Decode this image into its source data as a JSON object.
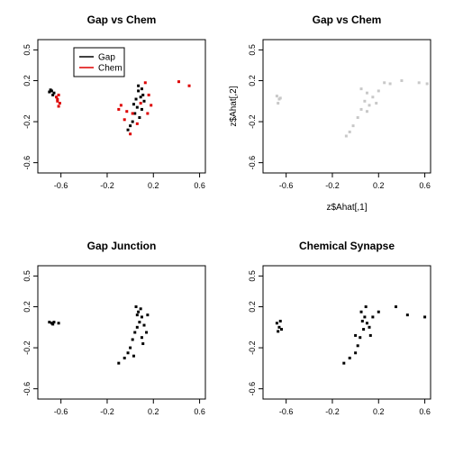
{
  "chart_data": [
    {
      "type": "scatter",
      "title": "Gap vs Chem",
      "xlabel": "",
      "ylabel": "",
      "xlim": [
        -0.8,
        0.65
      ],
      "ylim": [
        -0.7,
        0.6
      ],
      "xticks": [
        -0.6,
        -0.2,
        0.2,
        0.6
      ],
      "xtick_labels": [
        "-0.6",
        "-0.2",
        "0.2",
        "0.6"
      ],
      "yticks": [
        -0.6,
        -0.2,
        0.2,
        0.5
      ],
      "ytick_labels": [
        "-0.6",
        "-0.2",
        "0.2",
        "0.5"
      ],
      "legend": {
        "placement": "top-left",
        "entries": [
          {
            "name": "Gap",
            "color": "#000000"
          },
          {
            "name": "Chem",
            "color": "#dd0000"
          }
        ]
      },
      "series": [
        {
          "name": "Gap",
          "color": "#000000",
          "points": [
            [
              -0.69,
              0.11
            ],
            [
              -0.7,
              0.09
            ],
            [
              -0.68,
              0.1
            ],
            [
              -0.66,
              0.08
            ],
            [
              -0.67,
              0.06
            ],
            [
              0.05,
              0.02
            ],
            [
              0.07,
              0.1
            ],
            [
              0.09,
              0.04
            ],
            [
              0.1,
              0.12
            ],
            [
              0.06,
              -0.06
            ],
            [
              0.04,
              -0.12
            ],
            [
              0.02,
              -0.2
            ],
            [
              0.08,
              -0.16
            ],
            [
              0.11,
              0.06
            ],
            [
              0.0,
              -0.24
            ],
            [
              0.03,
              -0.03
            ],
            [
              0.12,
              0.0
            ],
            [
              0.1,
              -0.08
            ],
            [
              0.07,
              0.15
            ],
            [
              -0.02,
              -0.28
            ]
          ]
        },
        {
          "name": "Chem",
          "color": "#dd0000",
          "points": [
            [
              -0.62,
              0.06
            ],
            [
              -0.63,
              0.02
            ],
            [
              -0.61,
              -0.02
            ],
            [
              -0.64,
              0.04
            ],
            [
              -0.62,
              -0.05
            ],
            [
              -0.63,
              0.0
            ],
            [
              -0.1,
              -0.08
            ],
            [
              -0.05,
              -0.18
            ],
            [
              0.0,
              -0.32
            ],
            [
              0.13,
              0.18
            ],
            [
              0.16,
              0.06
            ],
            [
              0.18,
              -0.04
            ],
            [
              0.42,
              0.19
            ],
            [
              0.51,
              0.15
            ],
            [
              -0.08,
              -0.04
            ],
            [
              0.02,
              -0.12
            ],
            [
              0.06,
              -0.22
            ],
            [
              0.15,
              -0.12
            ],
            [
              0.09,
              -0.02
            ],
            [
              -0.03,
              -0.1
            ]
          ]
        }
      ]
    },
    {
      "type": "scatter",
      "title": "Gap vs Chem",
      "xlabel": "z$Ahat[,1]",
      "ylabel": "z$Ahat[,2]",
      "xlim": [
        -0.8,
        0.65
      ],
      "ylim": [
        -0.7,
        0.6
      ],
      "xticks": [
        -0.6,
        -0.2,
        0.2,
        0.6
      ],
      "xtick_labels": [
        "-0.6",
        "-0.2",
        "0.2",
        "0.6"
      ],
      "yticks": [
        -0.6,
        -0.2,
        0.2,
        0.5
      ],
      "ytick_labels": [
        "-0.6",
        "-0.2",
        "0.2",
        "0.5"
      ],
      "series": [
        {
          "name": "",
          "color": "#c8c8c8",
          "points": [
            [
              -0.68,
              0.05
            ],
            [
              -0.66,
              0.02
            ],
            [
              -0.67,
              -0.02
            ],
            [
              -0.65,
              0.03
            ],
            [
              0.05,
              0.12
            ],
            [
              0.1,
              0.08
            ],
            [
              0.15,
              0.04
            ],
            [
              0.2,
              0.1
            ],
            [
              0.25,
              0.18
            ],
            [
              0.3,
              0.17
            ],
            [
              0.4,
              0.2
            ],
            [
              0.55,
              0.18
            ],
            [
              0.62,
              0.17
            ],
            [
              0.08,
              0.0
            ],
            [
              0.05,
              -0.08
            ],
            [
              0.02,
              -0.16
            ],
            [
              -0.02,
              -0.24
            ],
            [
              -0.05,
              -0.3
            ],
            [
              0.12,
              -0.04
            ],
            [
              0.18,
              -0.02
            ],
            [
              0.1,
              -0.1
            ],
            [
              -0.08,
              -0.34
            ]
          ]
        }
      ]
    },
    {
      "type": "scatter",
      "title": "Gap Junction",
      "xlabel": "",
      "ylabel": "",
      "xlim": [
        -0.8,
        0.65
      ],
      "ylim": [
        -0.7,
        0.6
      ],
      "xticks": [
        -0.6,
        -0.2,
        0.2,
        0.6
      ],
      "xtick_labels": [
        "-0.6",
        "-0.2",
        "0.2",
        "0.6"
      ],
      "yticks": [
        -0.6,
        -0.2,
        0.2,
        0.5
      ],
      "ytick_labels": [
        "-0.6",
        "-0.2",
        "0.2",
        "0.5"
      ],
      "series": [
        {
          "name": "",
          "color": "#000000",
          "points": [
            [
              -0.7,
              0.05
            ],
            [
              -0.68,
              0.04
            ],
            [
              -0.67,
              0.03
            ],
            [
              -0.66,
              0.05
            ],
            [
              -0.62,
              0.04
            ],
            [
              0.05,
              0.2
            ],
            [
              0.07,
              0.15
            ],
            [
              0.1,
              0.1
            ],
            [
              0.08,
              0.05
            ],
            [
              0.06,
              0.0
            ],
            [
              0.04,
              -0.05
            ],
            [
              0.02,
              -0.12
            ],
            [
              0.0,
              -0.2
            ],
            [
              -0.02,
              -0.25
            ],
            [
              -0.05,
              -0.3
            ],
            [
              0.1,
              -0.1
            ],
            [
              0.12,
              0.02
            ],
            [
              0.15,
              0.12
            ],
            [
              0.09,
              0.18
            ],
            [
              0.11,
              -0.16
            ],
            [
              -0.1,
              -0.35
            ],
            [
              0.03,
              -0.28
            ],
            [
              0.14,
              -0.05
            ],
            [
              0.06,
              0.12
            ]
          ]
        }
      ]
    },
    {
      "type": "scatter",
      "title": "Chemical Synapse",
      "xlabel": "",
      "ylabel": "",
      "xlim": [
        -0.8,
        0.65
      ],
      "ylim": [
        -0.7,
        0.6
      ],
      "xticks": [
        -0.6,
        -0.2,
        0.2,
        0.6
      ],
      "xtick_labels": [
        "-0.6",
        "-0.2",
        "0.2",
        "0.6"
      ],
      "yticks": [
        -0.6,
        -0.2,
        0.2,
        0.5
      ],
      "ytick_labels": [
        "-0.6",
        "-0.2",
        "0.2",
        "0.5"
      ],
      "series": [
        {
          "name": "",
          "color": "#000000",
          "points": [
            [
              -0.68,
              0.04
            ],
            [
              -0.66,
              0.0
            ],
            [
              -0.67,
              -0.04
            ],
            [
              -0.65,
              0.06
            ],
            [
              -0.64,
              -0.02
            ],
            [
              0.05,
              0.15
            ],
            [
              0.08,
              0.1
            ],
            [
              0.1,
              0.04
            ],
            [
              0.07,
              -0.02
            ],
            [
              0.04,
              -0.1
            ],
            [
              0.02,
              -0.18
            ],
            [
              0.0,
              -0.25
            ],
            [
              -0.05,
              -0.3
            ],
            [
              -0.1,
              -0.35
            ],
            [
              0.12,
              0.0
            ],
            [
              0.15,
              0.1
            ],
            [
              0.2,
              0.15
            ],
            [
              0.35,
              0.2
            ],
            [
              0.6,
              0.1
            ],
            [
              0.45,
              0.12
            ],
            [
              0.09,
              0.2
            ],
            [
              0.13,
              -0.08
            ],
            [
              0.06,
              0.06
            ],
            [
              0.0,
              -0.08
            ]
          ]
        }
      ]
    }
  ]
}
